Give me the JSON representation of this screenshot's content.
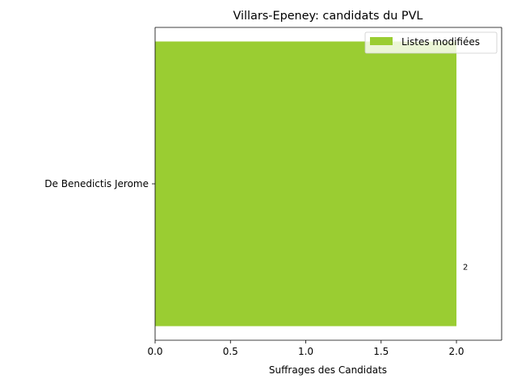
{
  "chart_data": {
    "type": "bar",
    "orientation": "horizontal",
    "title": "Villars-Epeney: candidats du PVL",
    "xlabel": "Suffrages des Candidats",
    "ylabel": "",
    "categories": [
      "De Benedictis Jerome"
    ],
    "series": [
      {
        "name": "Listes modifiées",
        "values": [
          2
        ],
        "color": "#9acd32"
      }
    ],
    "data_labels": [
      "2"
    ],
    "xlim": [
      0,
      2.3
    ],
    "xticks": [
      0.0,
      0.5,
      1.0,
      1.5,
      2.0
    ],
    "xtick_labels": [
      "0.0",
      "0.5",
      "1.0",
      "1.5",
      "2.0"
    ],
    "grid": false,
    "legend_position": "top-right"
  }
}
